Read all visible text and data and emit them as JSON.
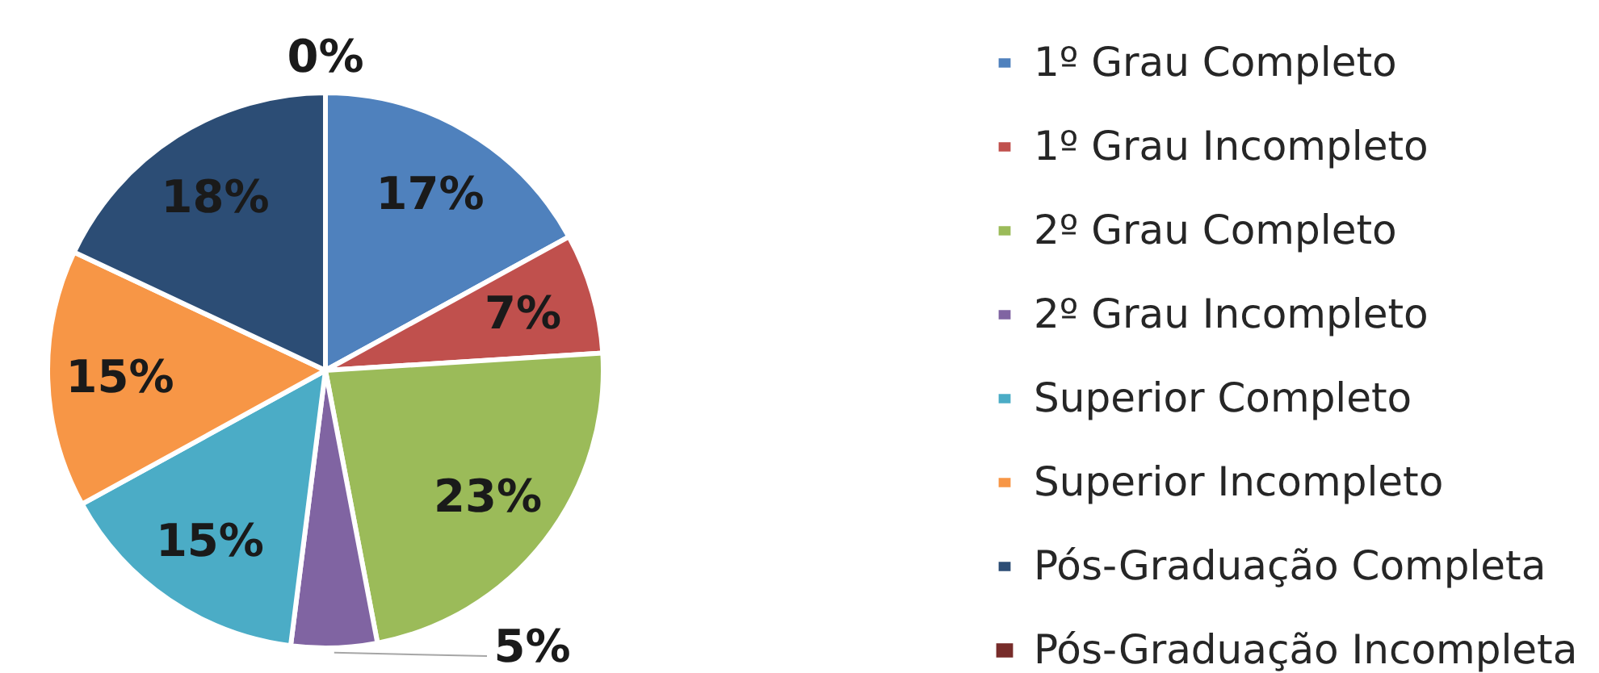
{
  "chart_data": {
    "type": "pie",
    "categories": [
      "1º Grau Completo",
      "1º Grau Incompleto",
      "2º Grau Completo",
      "2º Grau Incompleto",
      "Superior Completo",
      "Superior Incompleto",
      "Pós-Graduação Completa",
      "Pós-Graduação Incompleta"
    ],
    "values": [
      17,
      7,
      23,
      5,
      15,
      15,
      18,
      0
    ],
    "colors": [
      "#4f81bd",
      "#c0504d",
      "#9bbb59",
      "#8064a2",
      "#4bacc6",
      "#f79646",
      "#2c4d75",
      "#772c2a"
    ],
    "value_labels": [
      "17%",
      "7%",
      "23%",
      "5%",
      "15%",
      "15%",
      "18%",
      "0%"
    ],
    "legend": "right"
  }
}
